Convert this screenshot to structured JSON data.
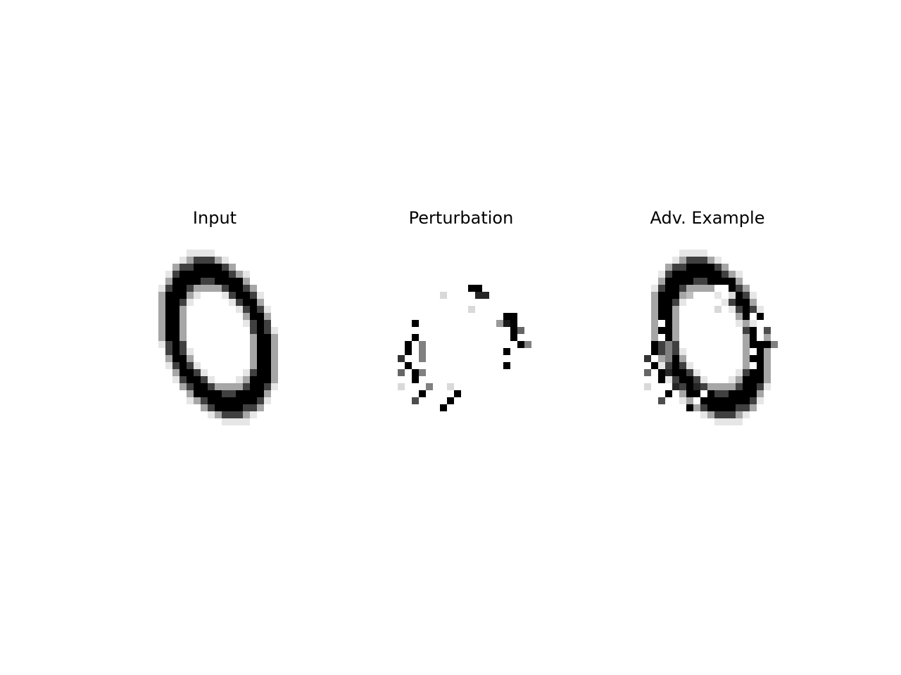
{
  "figure": {
    "panels": [
      {
        "id": "input",
        "title": "Input"
      },
      {
        "id": "perturbation",
        "title": "Perturbation"
      },
      {
        "id": "adv",
        "title": "Adv. Example"
      }
    ],
    "colormap": {
      "min_color": "#ffffff",
      "max_color": "#000000"
    }
  }
}
